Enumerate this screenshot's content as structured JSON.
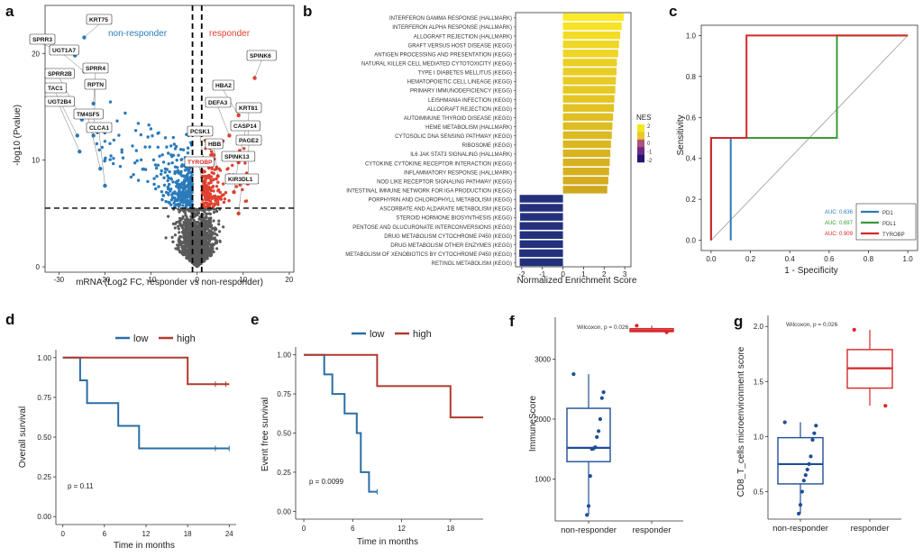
{
  "panels": {
    "a": {
      "letter": "a",
      "legend_nonresponder": "non-responder",
      "legend_responder": "responder",
      "xlabel": "mRNA (Log2 FC, responder vs non-responder)",
      "ylabel": "-log10 (Pvalue)",
      "xticks": [
        "-30",
        "-20",
        "-10",
        "0",
        "10",
        "20"
      ],
      "yticks": [
        "0",
        "10",
        "20"
      ],
      "genes": [
        "KRT75",
        "SPRR3",
        "UGT1A7",
        "SPRR4",
        "SPRR2B",
        "RPTN",
        "TAC1",
        "UGT2B4",
        "TM4SF5",
        "CLCA1",
        "SPINK6",
        "HBA2",
        "DEFA3",
        "KRT81",
        "PCSK1",
        "CASP14",
        "HBB",
        "PAGE2",
        "TYROBP",
        "SPINK13",
        "KIR3DL1"
      ]
    },
    "b": {
      "letter": "b",
      "xlabel": "Normalized Enrichment Score",
      "xticks": [
        "-2",
        "-1",
        "0",
        "1",
        "2",
        "3"
      ],
      "legend_title": "NES",
      "legend_ticks": [
        "2",
        "1",
        "0",
        "-1",
        "-2"
      ]
    },
    "c": {
      "letter": "c",
      "xlabel": "1 - Specificity",
      "ylabel": "Sensitivity",
      "xticks": [
        "0.0",
        "0.2",
        "0.4",
        "0.6",
        "0.8",
        "1.0"
      ],
      "yticks": [
        "0.0",
        "0.2",
        "0.4",
        "0.6",
        "0.8",
        "1.0"
      ],
      "legend": [
        "PD1",
        "PDL1",
        "TYROBP"
      ],
      "auc": [
        "AUC: 0.636",
        "AUC: 0.697",
        "AUC: 0.909"
      ]
    },
    "d": {
      "letter": "d",
      "legend_low": "low",
      "legend_high": "high",
      "xlabel": "Time in months",
      "ylabel": "Overall survival",
      "xticks": [
        "0",
        "6",
        "12",
        "18",
        "24"
      ],
      "yticks": [
        "0.00",
        "0.25",
        "0.50",
        "0.75",
        "1.00"
      ],
      "pvalue": "p = 0.11"
    },
    "e": {
      "letter": "e",
      "legend_low": "low",
      "legend_high": "high",
      "xlabel": "Time in months",
      "ylabel": "Event free survival",
      "xticks": [
        "0",
        "6",
        "12",
        "18"
      ],
      "yticks": [
        "0.00",
        "0.25",
        "0.50",
        "0.75",
        "1.00"
      ],
      "pvalue": "p = 0.0099"
    },
    "f": {
      "letter": "f",
      "ylabel": "ImmuneScore",
      "xticks": [
        "non-responder",
        "responder"
      ],
      "yticks": [
        "1000",
        "2000",
        "3000"
      ],
      "stat": "Wilcoxon, p = 0.026"
    },
    "g": {
      "letter": "g",
      "ylabel": "CD8_T_cells microenvironment score",
      "xticks": [
        "non-responder",
        "responder"
      ],
      "yticks": [
        "0.5",
        "1.0",
        "1.5",
        "2.0"
      ],
      "stat": "Wilcoxon, p = 0.026"
    }
  },
  "colors": {
    "nonresponder_blue": "#2b7bba",
    "responder_red": "#e0402f",
    "grey": "#5a5a5a",
    "low_blue": "#2a6ea6",
    "high_red": "#b03a2e",
    "pd1": "#2b7bba",
    "pdl1": "#3a9a3a",
    "tyrobp": "#d62728",
    "neg_bar": "#23317c",
    "box_blue": "#1f4e96",
    "box_red": "#d62728"
  },
  "chart_data": [
    {
      "type": "scatter",
      "panel": "a",
      "title": "",
      "xlabel": "mRNA (Log2 FC, responder vs non-responder)",
      "ylabel": "-log10 (Pvalue)",
      "xlim": [
        -33,
        21
      ],
      "ylim": [
        -0.5,
        24.5
      ],
      "labeled_points": [
        {
          "gene": "KRT75",
          "x": -24.5,
          "y": 21.5
        },
        {
          "gene": "SPRR3",
          "x": -26.5,
          "y": 19.8
        },
        {
          "gene": "UGT1A7",
          "x": -24.5,
          "y": 18.3
        },
        {
          "gene": "SPRR4",
          "x": -22.5,
          "y": 15.3
        },
        {
          "gene": "SPRR2B",
          "x": -25,
          "y": 13.8
        },
        {
          "gene": "RPTN",
          "x": -22.5,
          "y": 12.3
        },
        {
          "gene": "TAC1",
          "x": -26,
          "y": 12.3
        },
        {
          "gene": "UGT2B4",
          "x": -25.5,
          "y": 10.8
        },
        {
          "gene": "TM4SF5",
          "x": -21,
          "y": 9.2
        },
        {
          "gene": "CLCA1",
          "x": -20,
          "y": 7.6
        },
        {
          "gene": "SPINK6",
          "x": 12.5,
          "y": 17.7
        },
        {
          "gene": "HBA2",
          "x": 9,
          "y": 14.2
        },
        {
          "gene": "DEFA3",
          "x": 7,
          "y": 12.3
        },
        {
          "gene": "KRT81",
          "x": 11,
          "y": 11.8
        },
        {
          "gene": "PCSK1",
          "x": 1.5,
          "y": 9.8
        },
        {
          "gene": "CASP14",
          "x": 9,
          "y": 9.8
        },
        {
          "gene": "HBB",
          "x": 4.5,
          "y": 8.5
        },
        {
          "gene": "PAGE2",
          "x": 11,
          "y": 7.8
        },
        {
          "gene": "TYROBP",
          "x": 1.5,
          "y": 7
        },
        {
          "gene": "SPINK13",
          "x": 8,
          "y": 7
        },
        {
          "gene": "KIR3DL1",
          "x": 9,
          "y": 5
        }
      ],
      "cutoffs": {
        "log2fc": [
          -1,
          1
        ],
        "neglog10p": 5.5
      }
    },
    {
      "type": "bar",
      "panel": "b",
      "orientation": "horizontal",
      "xlabel": "Normalized Enrichment Score",
      "xlim": [
        -2.3,
        3.3
      ],
      "categories": [
        "INTERFERON GAMMA RESPONSE (HALLMARK)",
        "INTERFERON ALPHA RESPONSE (HALLMARK)",
        "ALLOGRAFT REJECTION (HALLMARK)",
        "GRAFT VERSUS HOST DISEASE (KEGG)",
        "ANTIGEN PROCESSING AND PRESENTATION (KEGG)",
        "NATURAL KILLER CELL MEDIATED CYTOTOXICITY (KEGG)",
        "TYPE I DIABETES MELLITUS (KEGG)",
        "HEMATOPOIETIC CELL LINEAGE (KEGG)",
        "PRIMARY IMMUNODEFICIENCY (KEGG)",
        "LEISHMANIA INFECTION (KEGG)",
        "ALLOGRAFT REJECTION (KEGG)",
        "AUTOIMMUNE THYROID DISEASE (KEGG)",
        "HEME METABOLISM (HALLMARK)",
        "CYTOSOLIC DNA SENSING PATHWAY (KEGG)",
        "RIBOSOME (KEGG)",
        "IL6 JAK STAT3 SIGNALING (HALLMARK)",
        "CYTOKINE CYTOKINE RECEPTOR INTERACTION (KEGG)",
        "INFLAMMATORY RESPONSE (HALLMARK)",
        "NOD LIKE RECEPTOR SIGNALING PATHWAY (KEGG)",
        "INTESTINAL IMMUNE NETWORK FOR IGA PRODUCTION (KEGG)",
        "PORPHYRIN AND CHLOROPHYLL METABOLISM (KEGG)",
        "ASCORBATE AND ALDARATE METABOLISM (KEGG)",
        "STEROID HORMONE BIOSYNTHESIS (KEGG)",
        "PENTOSE AND GLUCURONATE INTERCONVERSIONS (KEGG)",
        "DRUG METABOLISM CYTOCHROME P450 (KEGG)",
        "DRUG METABOLISM OTHER ENZYMES (KEGG)",
        "METABOLISM OF XENOBIOTICS BY CYTOCHROME P450 (KEGG)",
        "RETINOL METABOLISM (KEGG)"
      ],
      "values": [
        2.95,
        2.85,
        2.78,
        2.72,
        2.68,
        2.62,
        2.6,
        2.57,
        2.54,
        2.5,
        2.47,
        2.43,
        2.4,
        2.37,
        2.33,
        2.3,
        2.27,
        2.24,
        2.2,
        2.15,
        -2.1,
        -2.1,
        -2.08,
        -2.1,
        -2.1,
        -2.1,
        -2.12,
        -2.1
      ]
    },
    {
      "type": "line",
      "panel": "c",
      "xlabel": "1 - Specificity",
      "ylabel": "Sensitivity",
      "xlim": [
        0,
        1
      ],
      "ylim": [
        0,
        1
      ],
      "series": [
        {
          "name": "PD1",
          "auc": 0.636,
          "x": [
            0,
            0,
            0.1,
            0.1
          ],
          "y": [
            0,
            0.5,
            0.5,
            0
          ]
        },
        {
          "name": "PDL1",
          "auc": 0.697,
          "x": [
            0,
            0,
            0.18,
            0.18,
            0.64,
            0.64,
            1
          ],
          "y": [
            0,
            0.5,
            0.5,
            0.5,
            0.5,
            1,
            1
          ]
        },
        {
          "name": "TYROBP",
          "auc": 0.909,
          "x": [
            0,
            0,
            0.18,
            0.18,
            1
          ],
          "y": [
            0,
            0.5,
            0.5,
            1,
            1
          ]
        }
      ]
    },
    {
      "type": "line",
      "panel": "d",
      "xlabel": "Time in months",
      "ylabel": "Overall survival",
      "xlim": [
        -1,
        25
      ],
      "ylim": [
        0,
        1
      ],
      "pvalue": "p = 0.11",
      "series": [
        {
          "name": "low",
          "x": [
            0,
            2.5,
            2.5,
            3.5,
            3.5,
            8,
            8,
            11,
            11,
            24
          ],
          "y": [
            1,
            1,
            0.857,
            0.857,
            0.714,
            0.714,
            0.571,
            0.571,
            0.429,
            0.429
          ],
          "censor": [
            [
              22,
              0.429
            ],
            [
              24,
              0.429
            ]
          ]
        },
        {
          "name": "high",
          "x": [
            0,
            18,
            18,
            24
          ],
          "y": [
            1,
            1,
            0.833,
            0.833
          ],
          "censor": [
            [
              22,
              0.833
            ],
            [
              23.5,
              0.833
            ]
          ]
        }
      ]
    },
    {
      "type": "line",
      "panel": "e",
      "xlabel": "Time in months",
      "ylabel": "Event free survival",
      "xlim": [
        -1,
        22
      ],
      "ylim": [
        0,
        1
      ],
      "pvalue": "p = 0.0099",
      "series": [
        {
          "name": "low",
          "x": [
            0,
            2.5,
            2.5,
            3.5,
            3.5,
            5,
            5,
            6.5,
            6.5,
            7,
            7,
            8,
            8,
            9
          ],
          "y": [
            1,
            1,
            0.875,
            0.875,
            0.75,
            0.75,
            0.625,
            0.625,
            0.5,
            0.5,
            0.25,
            0.25,
            0.125,
            0.125
          ],
          "censor": [
            [
              9,
              0.125
            ]
          ]
        },
        {
          "name": "high",
          "x": [
            0,
            9,
            9,
            18,
            18,
            22
          ],
          "y": [
            1,
            1,
            0.8,
            0.8,
            0.6,
            0.6
          ],
          "censor": []
        }
      ]
    },
    {
      "type": "box",
      "panel": "f",
      "ylabel": "ImmuneScore",
      "ylim": [
        300,
        3700
      ],
      "categories": [
        "non-responder",
        "responder"
      ],
      "stat": "Wilcoxon, p = 0.026",
      "boxes": [
        {
          "name": "non-responder",
          "min": 400,
          "q1": 1290,
          "median": 1520,
          "q3": 2180,
          "max": 2750,
          "points": [
            2750,
            2450,
            2350,
            2000,
            1800,
            1700,
            1530,
            1510,
            1500,
            1050,
            550,
            400
          ]
        },
        {
          "name": "responder",
          "min": 3450,
          "q1": 3460,
          "median": 3480,
          "q3": 3510,
          "max": 3560,
          "points": [
            3560,
            3450
          ]
        }
      ]
    },
    {
      "type": "box",
      "panel": "g",
      "ylabel": "CD8_T_cells microenvironment score",
      "ylim": [
        0.25,
        2.1
      ],
      "categories": [
        "non-responder",
        "responder"
      ],
      "stat": "Wilcoxon, p = 0.026",
      "boxes": [
        {
          "name": "non-responder",
          "min": 0.3,
          "q1": 0.57,
          "median": 0.75,
          "q3": 0.99,
          "max": 1.13,
          "points": [
            1.13,
            1.1,
            1.03,
            0.97,
            0.82,
            0.75,
            0.7,
            0.65,
            0.6,
            0.5,
            0.38,
            0.3
          ]
        },
        {
          "name": "responder",
          "min": 1.28,
          "q1": 1.44,
          "median": 1.62,
          "q3": 1.79,
          "max": 1.97,
          "points": [
            1.97,
            1.28
          ]
        }
      ]
    }
  ]
}
